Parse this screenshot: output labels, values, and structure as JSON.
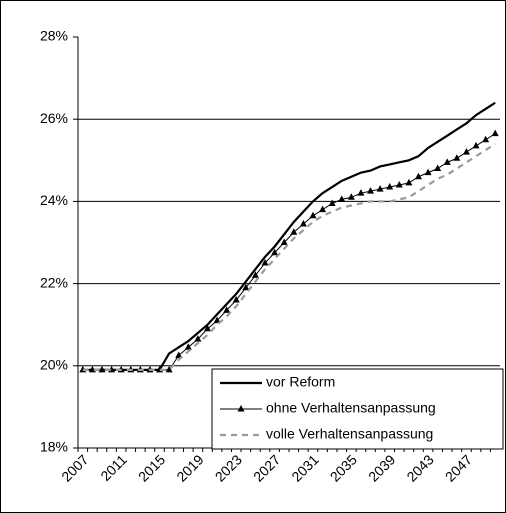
{
  "chart_data": {
    "type": "line",
    "categories": [
      "2007",
      null,
      null,
      null,
      "2011",
      null,
      null,
      null,
      "2015",
      null,
      null,
      null,
      "2019",
      null,
      null,
      null,
      "2023",
      null,
      null,
      null,
      "2027",
      null,
      null,
      null,
      "2031",
      null,
      null,
      null,
      "2035",
      null,
      null,
      null,
      "2039",
      null,
      null,
      null,
      "2043",
      null,
      null,
      null,
      "2047",
      null,
      null,
      null
    ],
    "series": [
      {
        "name": "vor Reform",
        "color": "#000000",
        "style": "solid",
        "marker": "none",
        "values": [
          19.9,
          19.9,
          19.9,
          19.9,
          19.9,
          19.9,
          19.9,
          19.9,
          19.9,
          20.3,
          20.45,
          20.6,
          20.8,
          21.0,
          21.25,
          21.5,
          21.75,
          22.05,
          22.35,
          22.65,
          22.9,
          23.2,
          23.5,
          23.75,
          24.0,
          24.2,
          24.35,
          24.5,
          24.6,
          24.7,
          24.75,
          24.85,
          24.9,
          24.95,
          25.0,
          25.1,
          25.3,
          25.45,
          25.6,
          25.75,
          25.9,
          26.1,
          26.25,
          26.4
        ]
      },
      {
        "name": "ohne Verhaltensanpassung",
        "color": "#000000",
        "style": "thin",
        "marker": "triangle",
        "values": [
          19.9,
          19.9,
          19.9,
          19.9,
          19.9,
          19.9,
          19.9,
          19.9,
          19.9,
          19.9,
          20.25,
          20.45,
          20.65,
          20.9,
          21.1,
          21.35,
          21.6,
          21.9,
          22.2,
          22.5,
          22.75,
          23.0,
          23.25,
          23.45,
          23.65,
          23.8,
          23.95,
          24.05,
          24.1,
          24.2,
          24.25,
          24.3,
          24.35,
          24.4,
          24.45,
          24.6,
          24.7,
          24.8,
          24.95,
          25.05,
          25.2,
          25.35,
          25.5,
          25.65
        ]
      },
      {
        "name": "volle Verhaltensanpassung",
        "color": "#999999",
        "style": "dashed",
        "marker": "none",
        "values": [
          19.9,
          19.9,
          19.9,
          19.9,
          19.9,
          19.9,
          19.9,
          19.9,
          19.9,
          19.9,
          20.15,
          20.35,
          20.55,
          20.75,
          21.0,
          21.2,
          21.45,
          21.75,
          22.05,
          22.35,
          22.6,
          22.85,
          23.1,
          23.3,
          23.5,
          23.65,
          23.75,
          23.85,
          23.9,
          23.95,
          24.0,
          24.0,
          24.0,
          24.05,
          24.1,
          24.25,
          24.4,
          24.55,
          24.65,
          24.8,
          24.95,
          25.1,
          25.25,
          25.4
        ]
      }
    ],
    "ylim": [
      18,
      28
    ],
    "yticks": [
      {
        "value": 18,
        "label": "18%"
      },
      {
        "value": 20,
        "label": "20%"
      },
      {
        "value": 22,
        "label": "22%"
      },
      {
        "value": 24,
        "label": "24%"
      },
      {
        "value": 26,
        "label": "26%"
      },
      {
        "value": 28,
        "label": "28%"
      }
    ],
    "grid": true,
    "legend": "lower right"
  }
}
